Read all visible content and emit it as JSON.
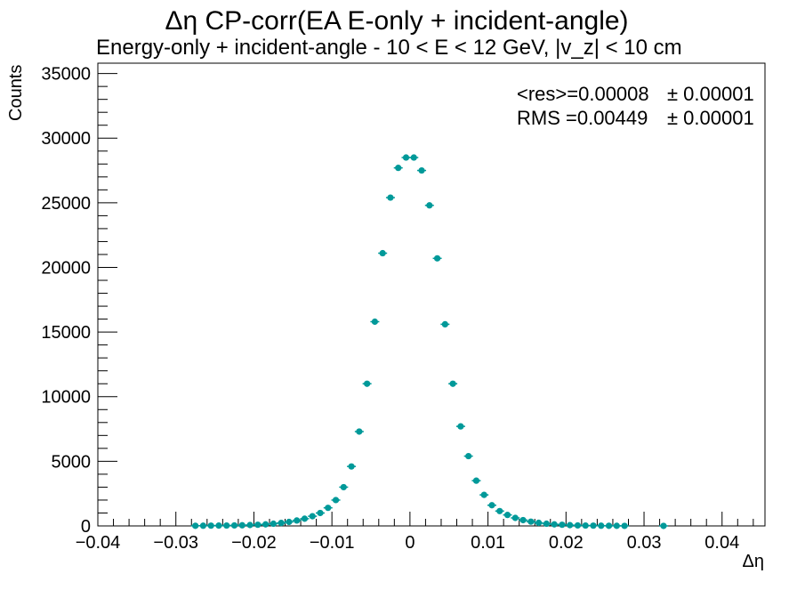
{
  "chart_data": {
    "type": "scatter",
    "title": "Δη CP-corr(EA E-only + incident-angle)",
    "subtitle": "Energy-only + incident-angle   -   10 < E < 12 GeV, |v_z| < 10 cm",
    "xlabel": "Δη",
    "ylabel": "Counts",
    "xlim": [
      -0.04,
      0.0455
    ],
    "ylim": [
      0,
      35800
    ],
    "x_ticks": [
      "−0.04",
      "−0.03",
      "−0.02",
      "−0.01",
      "0",
      "0.01",
      "0.02",
      "0.03",
      "0.04"
    ],
    "x_tick_values": [
      -0.04,
      -0.03,
      -0.02,
      -0.01,
      0,
      0.01,
      0.02,
      0.03,
      0.04
    ],
    "y_ticks": [
      "0",
      "5000",
      "10000",
      "15000",
      "20000",
      "25000",
      "30000",
      "35000"
    ],
    "y_tick_values": [
      0,
      5000,
      10000,
      15000,
      20000,
      25000,
      30000,
      35000
    ],
    "marker_color": "#009999",
    "grid": false,
    "stats": {
      "res_label": "<res>=0.00008",
      "res_err": "± 0.00001",
      "rms_label": "RMS =0.00449",
      "rms_err": "± 0.00001"
    },
    "series": [
      {
        "x": [
          -0.0275,
          -0.0265,
          -0.0255,
          -0.0245,
          -0.0235,
          -0.0225,
          -0.0215,
          -0.0205,
          -0.0195,
          -0.0185,
          -0.0175,
          -0.0165,
          -0.0155,
          -0.0145,
          -0.0135,
          -0.0125,
          -0.0115,
          -0.0105,
          -0.0095,
          -0.0085,
          -0.0075,
          -0.0065,
          -0.0055,
          -0.0045,
          -0.0035,
          -0.0025,
          -0.0015,
          -0.0005,
          0.0005,
          0.0015,
          0.0025,
          0.0035,
          0.0045,
          0.0055,
          0.0065,
          0.0075,
          0.0085,
          0.0095,
          0.0105,
          0.0115,
          0.0125,
          0.0135,
          0.0145,
          0.0155,
          0.0165,
          0.0175,
          0.0185,
          0.0195,
          0.0205,
          0.0215,
          0.0225,
          0.0235,
          0.0245,
          0.0255,
          0.0265,
          0.0275,
          0.0325
        ],
        "y": [
          10,
          15,
          20,
          25,
          30,
          40,
          50,
          70,
          90,
          120,
          170,
          230,
          310,
          420,
          560,
          750,
          1000,
          1400,
          2000,
          3000,
          4600,
          7300,
          11000,
          15800,
          21100,
          25400,
          27700,
          28500,
          28500,
          27500,
          24800,
          20700,
          15600,
          11000,
          7700,
          5400,
          3500,
          2400,
          1600,
          1150,
          850,
          620,
          450,
          330,
          240,
          170,
          120,
          90,
          60,
          40,
          30,
          20,
          15,
          10,
          8,
          5,
          2
        ]
      }
    ]
  }
}
